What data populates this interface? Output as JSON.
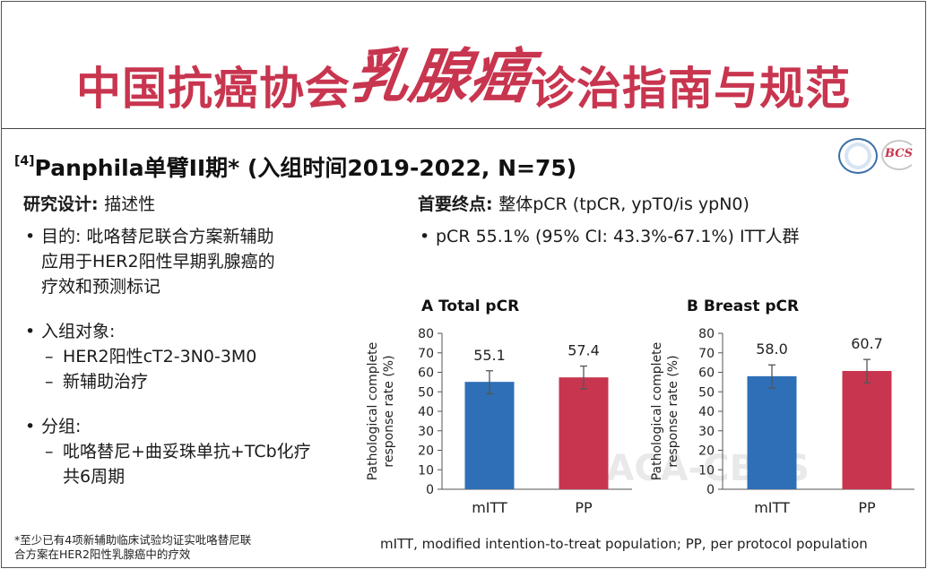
{
  "header": {
    "title_part1": "中国抗癌协会",
    "title_script": "乳腺癌",
    "title_part2": "诊治指南与规范"
  },
  "slide": {
    "ref": "[4]",
    "title": "Panphila单臂II期* (入组时间2019-2022, N=75)"
  },
  "logos": {
    "right_logo_text": "BCS"
  },
  "design": {
    "heading": "研究设计:",
    "value": "描述性",
    "bullets": [
      {
        "text": "目的: 吡咯替尼联合方案新辅助应用于HER2阳性早期乳腺癌的疗效和预测标记",
        "lines": [
          "目的: 吡咯替尼联合方案新辅助",
          "应用于HER2阳性早期乳腺癌的",
          "疗效和预测标记"
        ]
      },
      {
        "text": "入组对象:",
        "subs": [
          "HER2阳性cT2-3N0-3M0",
          "新辅助治疗"
        ]
      },
      {
        "text": "分组:",
        "subs": [
          "吡咯替尼+曲妥珠单抗+TCb化疗共6周期"
        ],
        "sub_lines": [
          "吡咯替尼+曲妥珠单抗+TCb化疗",
          "共6周期"
        ]
      }
    ]
  },
  "endpoint": {
    "heading": "首要终点:",
    "value": "整体pCR (tpCR, ypT0/is ypN0)",
    "bullet": "pCR 55.1% (95% CI: 43.3%-67.1%) ITT人群"
  },
  "footnote": "*至少已有4项新辅助临床试验均证实吡咯替尼联合方案在HER2阳性乳腺癌中的疗效",
  "footnote_lines": [
    "*至少已有4项新辅助临床试验均证实吡咯替尼联",
    "合方案在HER2阳性乳腺癌中的疗效"
  ],
  "abbrev_note": "mITT, modified intention-to-treat population; PP, per protocol population",
  "watermark": "CACA-CBCS",
  "chart_data": [
    {
      "type": "bar",
      "title": "A Total pCR",
      "ylabel": "Pathological complete response rate (%)",
      "ylabel_lines": [
        "Pathological complete",
        "response rate (%)"
      ],
      "categories": [
        "mITT",
        "PP"
      ],
      "values": [
        55.1,
        57.4
      ],
      "value_labels": [
        "55.1",
        "57.4"
      ],
      "error_low": [
        49.0,
        51.6
      ],
      "error_high": [
        60.8,
        63.2
      ],
      "colors": [
        "#2e6fb7",
        "#c8354f"
      ],
      "ylim": [
        0,
        80
      ],
      "yticks": [
        0,
        10,
        20,
        30,
        40,
        50,
        60,
        70,
        80
      ],
      "grid": false
    },
    {
      "type": "bar",
      "title": "B Breast pCR",
      "ylabel": "Pathological complete response rate (%)",
      "ylabel_lines": [
        "Pathological complete",
        "response rate (%)"
      ],
      "categories": [
        "mITT",
        "PP"
      ],
      "values": [
        58.0,
        60.7
      ],
      "value_labels": [
        "58.0",
        "60.7"
      ],
      "error_low": [
        52.0,
        54.6
      ],
      "error_high": [
        63.8,
        66.6
      ],
      "colors": [
        "#2e6fb7",
        "#c8354f"
      ],
      "ylim": [
        0,
        80
      ],
      "yticks": [
        0,
        10,
        20,
        30,
        40,
        50,
        60,
        70,
        80
      ],
      "grid": false
    }
  ]
}
